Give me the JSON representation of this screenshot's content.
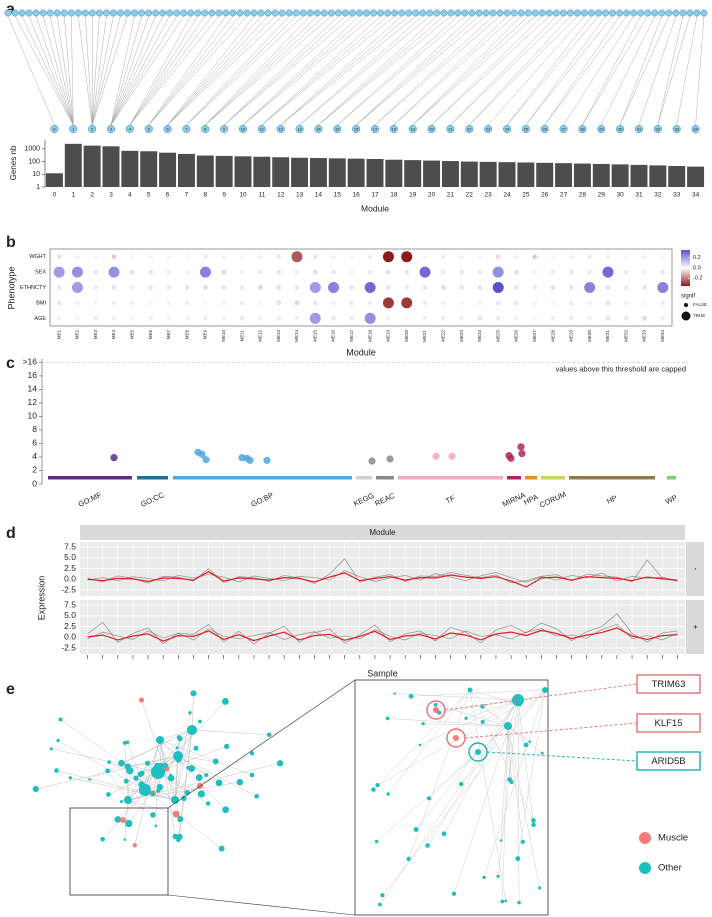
{
  "chart_data": [
    {
      "panel": "a",
      "type": "bar",
      "ylabel": "Genes nb",
      "xlabel": "Module",
      "categories": [
        "0",
        "1",
        "2",
        "3",
        "4",
        "5",
        "6",
        "7",
        "8",
        "9",
        "10",
        "11",
        "12",
        "13",
        "14",
        "15",
        "16",
        "17",
        "18",
        "19",
        "20",
        "21",
        "22",
        "23",
        "24",
        "25",
        "26",
        "27",
        "28",
        "29",
        "30",
        "31",
        "32",
        "33",
        "34"
      ],
      "values": [
        12,
        2500,
        1800,
        1600,
        700,
        650,
        500,
        400,
        300,
        280,
        260,
        240,
        220,
        200,
        190,
        180,
        170,
        160,
        140,
        130,
        120,
        110,
        100,
        95,
        90,
        85,
        80,
        75,
        70,
        65,
        60,
        55,
        50,
        45,
        40
      ],
      "color": "#4d4d4d",
      "log_scale": true,
      "ylim": [
        1,
        5000
      ],
      "yticks": [
        1,
        10,
        100,
        1000
      ]
    },
    {
      "panel": "b",
      "type": "dotplot",
      "ylabel": "Phenotype",
      "xlabel": "Module",
      "categories": [
        "ME1",
        "ME2",
        "ME3",
        "ME4",
        "ME5",
        "ME6",
        "ME7",
        "ME8",
        "ME9",
        "ME10",
        "ME11",
        "ME12",
        "ME13",
        "ME14",
        "ME15",
        "ME16",
        "ME17",
        "ME18",
        "ME19",
        "ME20",
        "ME21",
        "ME22",
        "ME23",
        "ME24",
        "ME25",
        "ME26",
        "ME27",
        "ME28",
        "ME29",
        "ME30",
        "ME31",
        "ME32",
        "ME33",
        "ME34"
      ],
      "series": [
        {
          "name": "WGHT",
          "values": [
            -0.05,
            0.03,
            0.02,
            -0.08,
            0.02,
            0.03,
            0.02,
            -0.02,
            0.04,
            0.03,
            0.02,
            0.03,
            -0.04,
            -0.25,
            0.05,
            0.03,
            0.02,
            -0.03,
            -0.35,
            -0.35,
            0.02,
            0.04,
            0.03,
            0.02,
            -0.05,
            0.03,
            -0.08,
            0.02,
            0.03,
            0.04,
            -0.03,
            0.02,
            0.03,
            0.02
          ],
          "signif": [
            false,
            false,
            false,
            false,
            false,
            false,
            false,
            false,
            false,
            false,
            false,
            false,
            false,
            true,
            false,
            false,
            false,
            false,
            true,
            true,
            false,
            false,
            false,
            false,
            false,
            false,
            false,
            false,
            false,
            false,
            false,
            false,
            false,
            false
          ]
        },
        {
          "name": "SEX",
          "values": [
            0.2,
            0.22,
            0.05,
            0.22,
            0.06,
            0.05,
            0.04,
            0.03,
            0.25,
            0.08,
            0.03,
            0.04,
            0.05,
            0.04,
            0.06,
            0.05,
            0.03,
            0.04,
            0.06,
            0.05,
            0.3,
            0.04,
            0.05,
            0.04,
            0.22,
            0.06,
            0.03,
            0.04,
            0.05,
            0.04,
            0.3,
            0.04,
            0.03,
            0.05
          ],
          "signif": [
            true,
            true,
            false,
            true,
            false,
            false,
            false,
            false,
            true,
            false,
            false,
            false,
            false,
            false,
            false,
            false,
            false,
            false,
            false,
            false,
            true,
            false,
            false,
            false,
            true,
            false,
            false,
            false,
            false,
            false,
            true,
            false,
            false,
            false
          ]
        },
        {
          "name": "ETHNCTY",
          "values": [
            0.05,
            0.2,
            0.04,
            0.06,
            0.03,
            0.05,
            0.04,
            0.06,
            0.07,
            0.05,
            0.04,
            0.08,
            0.06,
            0.05,
            0.2,
            0.25,
            0.05,
            0.3,
            0.06,
            0.04,
            0.05,
            0.07,
            0.05,
            0.06,
            0.35,
            0.05,
            0.04,
            0.06,
            0.05,
            0.25,
            0.06,
            0.04,
            0.05,
            0.25
          ],
          "signif": [
            false,
            true,
            false,
            false,
            false,
            false,
            false,
            false,
            false,
            false,
            false,
            false,
            false,
            false,
            true,
            true,
            false,
            true,
            false,
            false,
            false,
            false,
            false,
            false,
            true,
            false,
            false,
            false,
            false,
            true,
            false,
            false,
            false,
            true
          ]
        },
        {
          "name": "BMI",
          "values": [
            -0.04,
            0.03,
            0.02,
            0.04,
            0.03,
            0.02,
            0.03,
            -0.03,
            0.02,
            0.03,
            0.04,
            0.02,
            -0.05,
            -0.06,
            0.05,
            0.03,
            0.04,
            -0.03,
            -0.3,
            -0.3,
            0.04,
            0.03,
            0.02,
            0.03,
            0.05,
            -0.04,
            0.03,
            0.02,
            0.04,
            0.03,
            -0.05,
            0.03,
            0.02,
            0.04
          ],
          "signif": [
            false,
            false,
            false,
            false,
            false,
            false,
            false,
            false,
            false,
            false,
            false,
            false,
            false,
            false,
            false,
            false,
            false,
            false,
            true,
            true,
            false,
            false,
            false,
            false,
            false,
            false,
            false,
            false,
            false,
            false,
            false,
            false,
            false,
            false
          ]
        },
        {
          "name": "AGE",
          "values": [
            0.03,
            0.02,
            0.04,
            0.03,
            0.02,
            0.03,
            0.02,
            0.03,
            0.04,
            0.03,
            0.05,
            0.03,
            0.04,
            0.03,
            0.2,
            0.05,
            0.04,
            0.22,
            0.03,
            0.02,
            0.03,
            0.04,
            0.03,
            0.05,
            0.04,
            0.03,
            0.02,
            0.03,
            0.04,
            0.03,
            0.06,
            0.05,
            0.07,
            0.04
          ],
          "signif": [
            false,
            false,
            false,
            false,
            false,
            false,
            false,
            false,
            false,
            false,
            false,
            false,
            false,
            false,
            true,
            false,
            false,
            true,
            false,
            false,
            false,
            false,
            false,
            false,
            false,
            false,
            false,
            false,
            false,
            false,
            false,
            false,
            false,
            false
          ]
        }
      ],
      "colorbar": {
        "lim": [
          -0.35,
          0.35
        ],
        "ticks": [
          0.2,
          {
            "value": 0,
            "label": "0.0"
          },
          -0.2
        ],
        "low_color": "#8b1a1a",
        "mid_color": "#ffffff",
        "high_color": "#5a4fcf"
      },
      "size_legend": {
        "title": "signif",
        "labels": [
          "FALSE",
          "TRUE"
        ]
      }
    },
    {
      "panel": "c",
      "type": "manhattan",
      "annotation": "values above this threshold are capped",
      "xlim": [
        0,
        646
      ],
      "ylim": [
        0,
        18.5
      ],
      "yticks": [
        0,
        2,
        4,
        6,
        8,
        10,
        12,
        14,
        16,
        {
          "value": 18,
          "label": ">16"
        }
      ],
      "sources": [
        {
          "name": "GO:MF",
          "color": "#5b2c83",
          "start": 6,
          "end": 90,
          "x": [
            72
          ],
          "y": [
            3.9
          ]
        },
        {
          "name": "GO:CC",
          "color": "#1f6f9a",
          "start": 95,
          "end": 126,
          "x": [],
          "y": []
        },
        {
          "name": "GO:BP",
          "color": "#4aa8e0",
          "start": 131,
          "end": 310,
          "x": [
            156,
            160,
            164,
            200,
            205,
            208,
            225
          ],
          "y": [
            4.7,
            4.4,
            3.6,
            3.9,
            3.8,
            3.5,
            3.5
          ]
        },
        {
          "name": "KEGG",
          "color": "#d0d0d0",
          "start": 314,
          "end": 330,
          "x": [],
          "y": []
        },
        {
          "name": "REAC",
          "color": "#8a8a8a",
          "start": 334,
          "end": 352,
          "x": [
            330,
            348
          ],
          "y": [
            3.4,
            3.7
          ]
        },
        {
          "name": "TF",
          "color": "#f4a6c0",
          "start": 356,
          "end": 461,
          "x": [
            394,
            410
          ],
          "y": [
            4.1,
            4.1
          ]
        },
        {
          "name": "MIRNA",
          "color": "#b0245a",
          "start": 465,
          "end": 479,
          "x": [
            467,
            469,
            479,
            480
          ],
          "y": [
            4.2,
            3.8,
            5.5,
            4.5
          ]
        },
        {
          "name": "HPA",
          "color": "#f08c1c",
          "start": 483,
          "end": 495,
          "x": [],
          "y": []
        },
        {
          "name": "CORUM",
          "color": "#c9d45c",
          "start": 499,
          "end": 523,
          "x": [],
          "y": []
        },
        {
          "name": "HP",
          "color": "#8b7c4a",
          "start": 527,
          "end": 613,
          "x": [],
          "y": []
        },
        {
          "name": "WP",
          "color": "#7fd06b",
          "start": 625,
          "end": 634,
          "x": [],
          "y": []
        }
      ]
    },
    {
      "panel": "d",
      "type": "line",
      "strip": "Module",
      "ylabel": "Expression",
      "xlabel": "Sample",
      "categories": [
        null,
        null,
        null,
        null,
        null,
        null,
        null,
        null,
        null,
        null,
        null,
        null,
        null,
        null,
        null,
        null,
        null,
        null,
        null,
        null,
        null,
        null,
        null,
        null,
        null,
        null,
        null,
        null,
        null,
        null,
        null,
        null,
        null,
        null,
        null,
        null,
        null,
        null,
        null,
        null
      ],
      "ylim": [
        -3.9,
        8.7
      ],
      "yticks": [
        -2.5,
        {
          "value": 0,
          "label": "0.0"
        },
        2.5,
        {
          "value": 5,
          "label": "5.0"
        },
        7.5
      ],
      "facets": [
        {
          "name": "-",
          "series": [
            {
              "color": "#555555",
              "values": [
                0.3,
                -0.6,
                0.8,
                0.2,
                -0.9,
                0.7,
                0.5,
                -0.4,
                2.5,
                -0.8,
                0.6,
                0.4,
                -0.5,
                0.9,
                0.3,
                -1.0,
                1.2,
                4.8,
                -0.7,
                0.5,
                1.1,
                -0.5,
                0.8,
                0.6,
                1.6,
                0.9,
                0.4,
                1.0,
                -0.8,
                -0.3,
                0.7,
                1.1,
                -0.4,
                1.2,
                0.8,
                0.5,
                -0.6,
                4.5,
                0.3,
                -0.5
              ]
            },
            {
              "color": "#555555",
              "values": [
                -0.2,
                0.4,
                -0.3,
                0.6,
                0.2,
                -0.4,
                0.9,
                0.3,
                1.2,
                0.5,
                -0.6,
                0.8,
                0.2,
                -0.3,
                0.7,
                0.4,
                -0.2,
                2.0,
                0.6,
                -0.5,
                0.3,
                0.9,
                -0.2,
                1.3,
                0.5,
                -0.3,
                0.8,
                1.6,
                0.4,
                -0.7,
                0.6,
                -0.2,
                0.9,
                0.3,
                1.5,
                -0.4,
                0.7,
                0.2,
                0.5,
                -0.3
              ]
            },
            {
              "color": "#e41a1c",
              "values": [
                0,
                -0.3,
                0.2,
                0.1,
                -0.5,
                0.3,
                0.2,
                -0.2,
                1.8,
                -0.4,
                0.3,
                0.1,
                -0.2,
                0.4,
                0.2,
                -0.6,
                0.5,
                1.5,
                -0.3,
                0.2,
                0.6,
                -0.2,
                0.4,
                0.3,
                1.0,
                0.5,
                0.2,
                0.6,
                -0.4,
                -1.8,
                0.3,
                0.5,
                -0.2,
                0.6,
                0.4,
                0.2,
                -0.3,
                0.5,
                0.1,
                -0.2
              ]
            }
          ]
        },
        {
          "name": "+",
          "series": [
            {
              "color": "#555555",
              "values": [
                0.8,
                3.5,
                -1.2,
                0.9,
                2.2,
                -1.5,
                1.0,
                0.7,
                3.0,
                -1.1,
                1.4,
                -1.6,
                0.9,
                2.6,
                -1.2,
                1.1,
                1.9,
                -1.4,
                0.6,
                2.9,
                -1.0,
                0.8,
                1.5,
                -0.9,
                2.3,
                1.2,
                -1.3,
                1.7,
                2.8,
                1.0,
                3.3,
                2.0,
                -0.8,
                1.3,
                2.5,
                5.5,
                0.9,
                -1.1,
                1.0,
                1.5
              ]
            },
            {
              "color": "#555555",
              "values": [
                -0.4,
                1.2,
                0.3,
                -0.5,
                1.5,
                -0.2,
                0.9,
                -0.6,
                2.0,
                0.2,
                -0.3,
                0.4,
                1.1,
                -0.5,
                0.6,
                1.3,
                -0.2,
                0.3,
                -0.4,
                1.8,
                0.2,
                -0.6,
                1.0,
                0.4,
                -0.3,
                1.5,
                0.2,
                0.6,
                -0.4,
                1.2,
                2.0,
                0.3,
                0.5,
                -0.2,
                1.8,
                3.0,
                -0.3,
                0.4,
                -0.6,
                0.9
              ]
            },
            {
              "color": "#e41a1c",
              "values": [
                0.1,
                0.5,
                -0.6,
                0.3,
                0.8,
                -0.9,
                0.4,
                0.2,
                1.5,
                -0.5,
                0.6,
                -0.8,
                0.3,
                1.2,
                -0.6,
                0.4,
                0.7,
                -0.7,
                0.2,
                1.4,
                -0.5,
                0.3,
                0.6,
                -0.4,
                1.0,
                0.5,
                -0.6,
                0.8,
                1.2,
                0.4,
                1.6,
                0.9,
                -0.3,
                0.5,
                1.1,
                2.2,
                0.3,
                -0.5,
                0.4,
                0.6
              ]
            }
          ]
        }
      ]
    }
  ],
  "network": {
    "panel": "e",
    "genes": [
      {
        "label": "TRIM63",
        "color": "#e57373"
      },
      {
        "label": "KLF15",
        "color": "#e57373"
      },
      {
        "label": "ARID5B",
        "color": "#17b3b3"
      }
    ],
    "legend": [
      {
        "name": "Muscle",
        "color": "#f47c7c"
      },
      {
        "name": "Other",
        "color": "#1fbfbf"
      }
    ]
  }
}
